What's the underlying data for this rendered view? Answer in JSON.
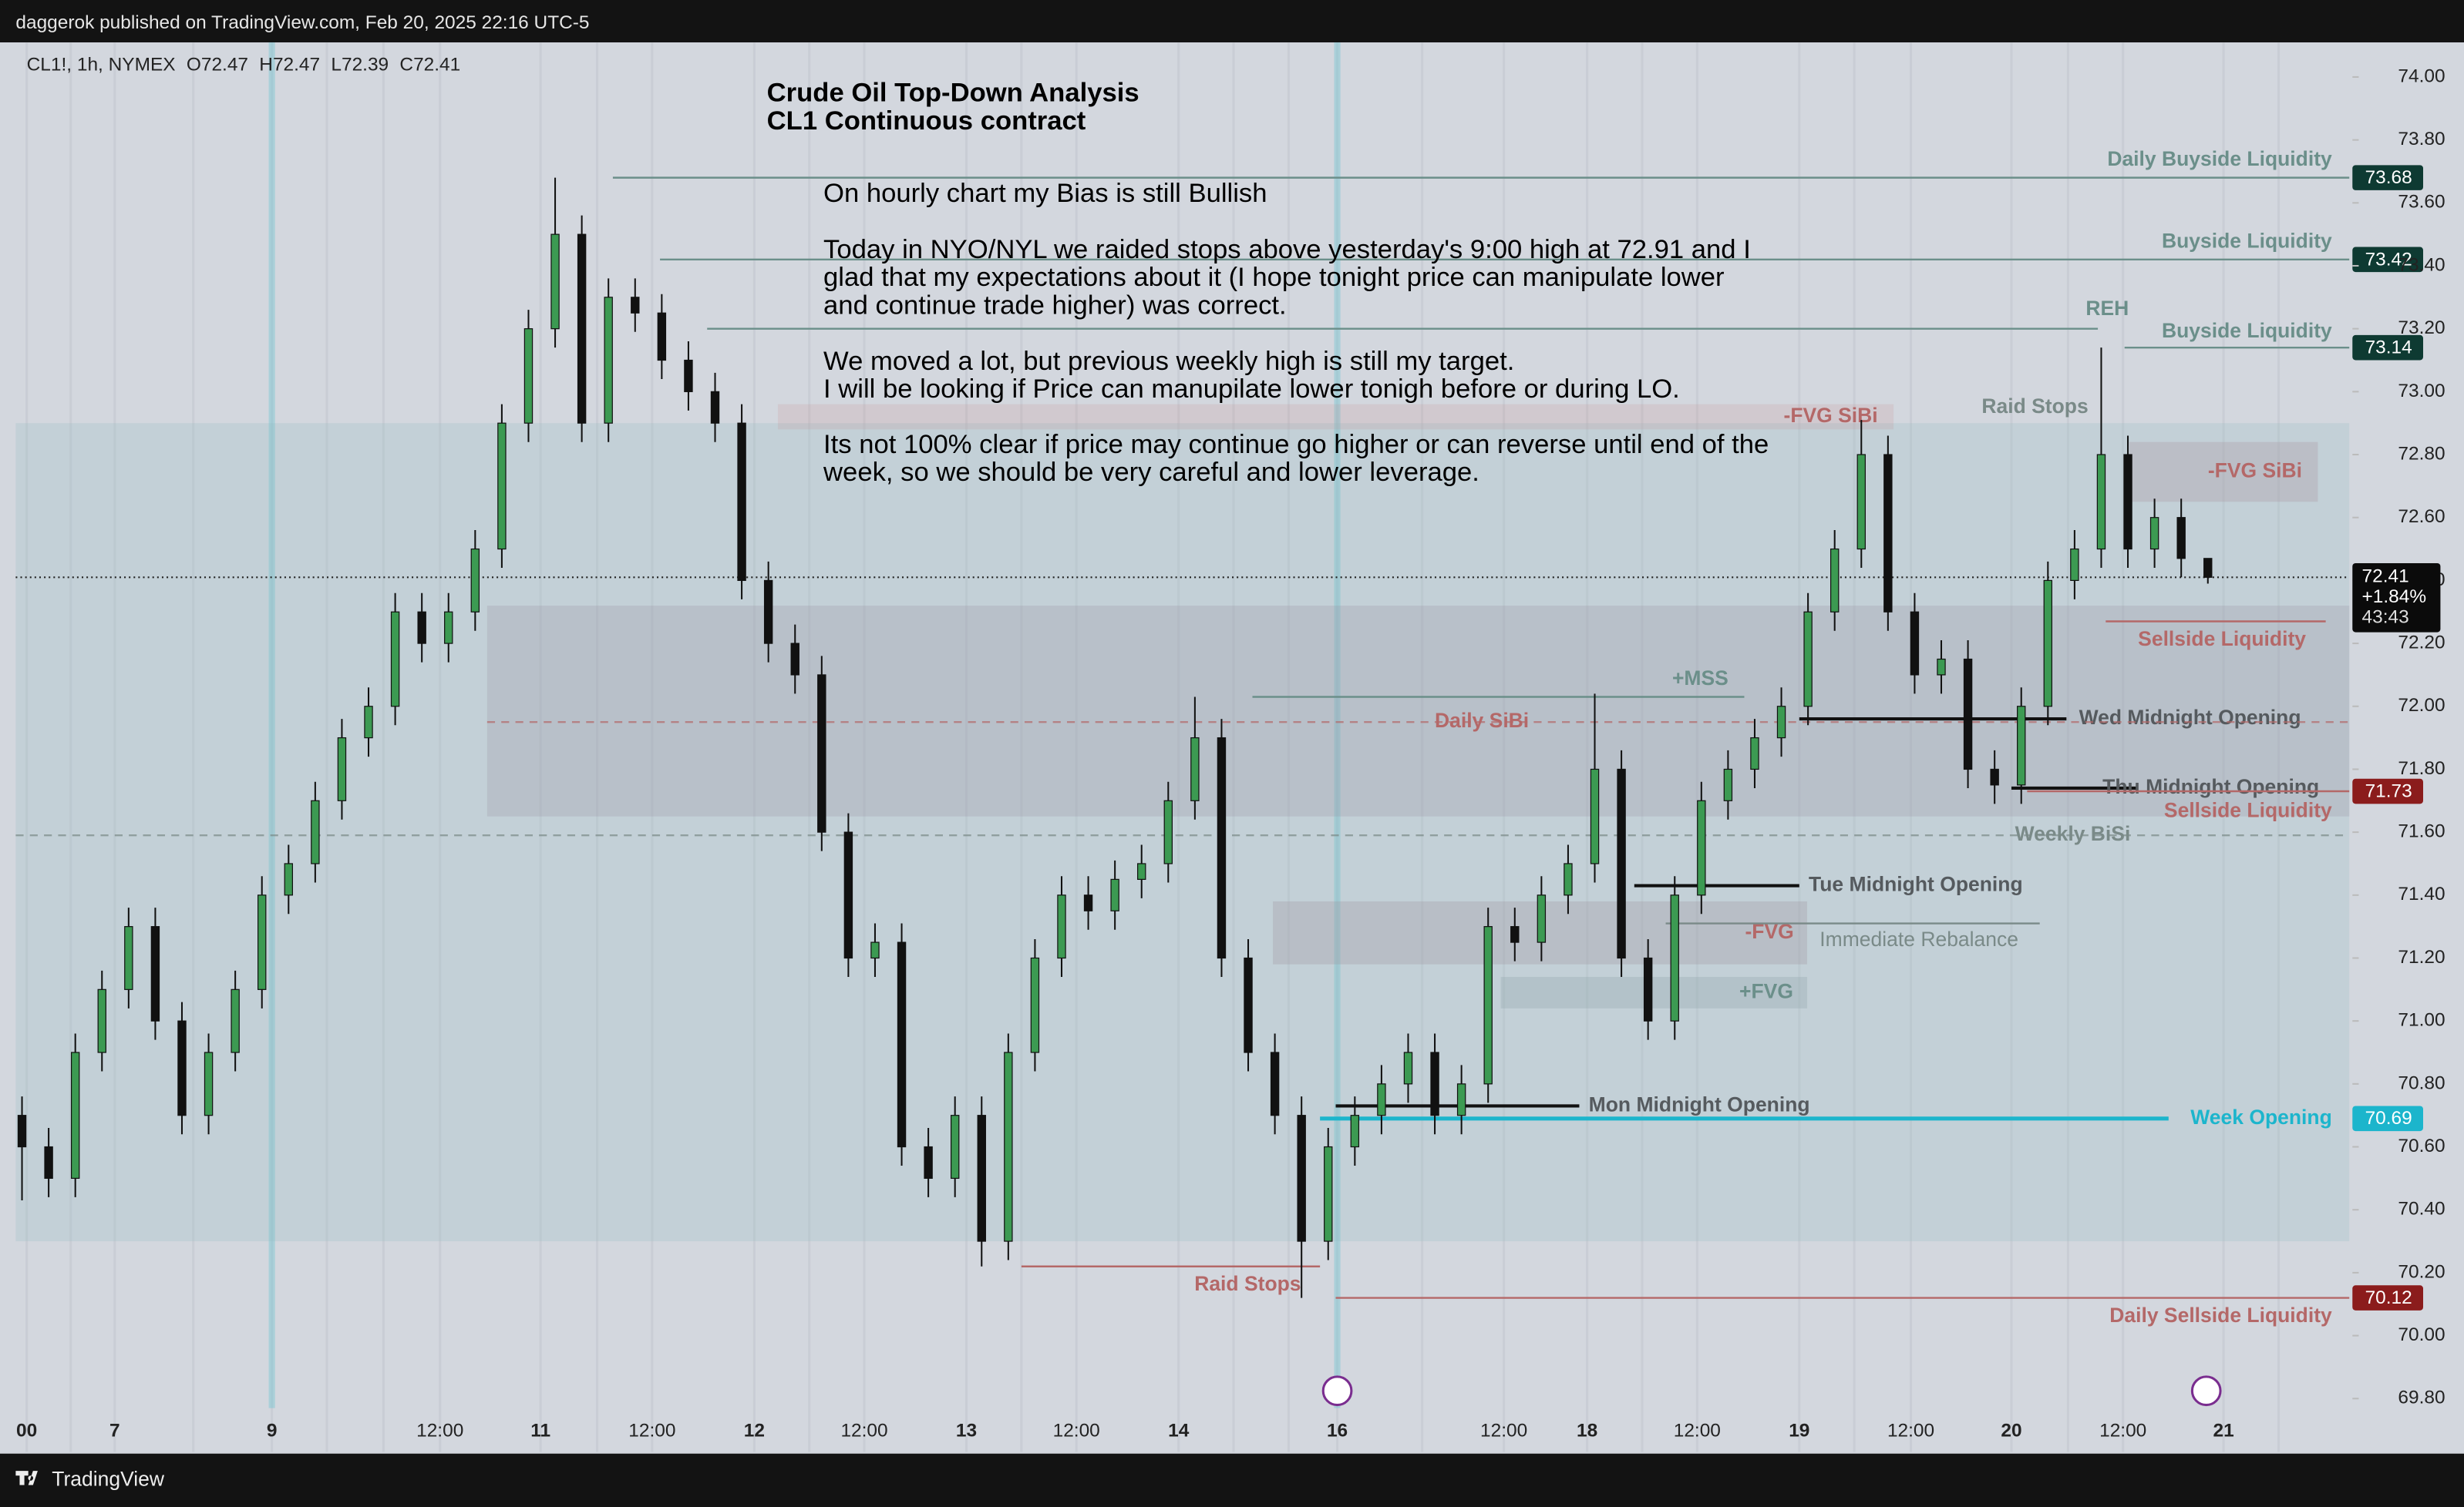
{
  "header": {
    "text": "daggerok published on TradingView.com, Feb 20, 2025 22:16 UTC-5"
  },
  "footer": {
    "brand": "TradingView"
  },
  "chart_data": {
    "type": "candlestick",
    "title": "Crude Oil Top-Down Analysis",
    "subtitle": "CL1 Continuous contract",
    "symbol": "CL1!, 1h, NYMEX",
    "ohlc": [
      {
        "key": "O",
        "value": 72.47
      },
      {
        "key": "H",
        "value": 72.47
      },
      {
        "key": "L",
        "value": 72.39
      },
      {
        "key": "C",
        "value": 72.41
      }
    ],
    "notes": [
      [
        "On hourly chart my Bias is still Bullish"
      ],
      [
        "Today in NYO/NYL we raided stops above yesterday's 9:00 high at 72.91 and I",
        "glad that my expectations about it (I hope tonight price can manipulate lower",
        "and continue trade higher) was correct."
      ],
      [
        "We moved a lot, but previous weekly high is still my target.",
        "I will be looking if Price can manupilate lower tonigh before or during LO."
      ],
      [
        "Its not 100% clear if price may continue go higher or can reverse until end of the",
        "week, so we should be very careful and lower leverage."
      ]
    ],
    "up_color": "#3c9a52",
    "down_color": "#111111",
    "candles": [
      [
        70.7,
        70.76,
        70.43,
        70.6
      ],
      [
        70.6,
        70.66,
        70.44,
        70.5
      ],
      [
        70.5,
        70.96,
        70.44,
        70.9
      ],
      [
        70.9,
        71.16,
        70.84,
        71.1
      ],
      [
        71.1,
        71.36,
        71.04,
        71.3
      ],
      [
        71.3,
        71.36,
        70.94,
        71.0
      ],
      [
        71.0,
        71.06,
        70.64,
        70.7
      ],
      [
        70.7,
        70.96,
        70.64,
        70.9
      ],
      [
        70.9,
        71.16,
        70.84,
        71.1
      ],
      [
        71.1,
        71.46,
        71.04,
        71.4
      ],
      [
        71.4,
        71.56,
        71.34,
        71.5
      ],
      [
        71.5,
        71.76,
        71.44,
        71.7
      ],
      [
        71.7,
        71.96,
        71.64,
        71.9
      ],
      [
        71.9,
        72.06,
        71.84,
        72.0
      ],
      [
        72.0,
        72.36,
        71.94,
        72.3
      ],
      [
        72.3,
        72.36,
        72.14,
        72.2
      ],
      [
        72.2,
        72.36,
        72.14,
        72.3
      ],
      [
        72.3,
        72.56,
        72.24,
        72.5
      ],
      [
        72.5,
        72.96,
        72.44,
        72.9
      ],
      [
        72.9,
        73.26,
        72.84,
        73.2
      ],
      [
        73.2,
        73.68,
        73.14,
        73.5
      ],
      [
        73.5,
        73.56,
        72.84,
        72.9
      ],
      [
        72.9,
        73.36,
        72.84,
        73.3
      ],
      [
        73.3,
        73.36,
        73.19,
        73.25
      ],
      [
        73.25,
        73.31,
        73.04,
        73.1
      ],
      [
        73.1,
        73.16,
        72.94,
        73.0
      ],
      [
        73.0,
        73.06,
        72.84,
        72.9
      ],
      [
        72.9,
        72.96,
        72.34,
        72.4
      ],
      [
        72.4,
        72.46,
        72.14,
        72.2
      ],
      [
        72.2,
        72.26,
        72.04,
        72.1
      ],
      [
        72.1,
        72.16,
        71.54,
        71.6
      ],
      [
        71.6,
        71.66,
        71.14,
        71.2
      ],
      [
        71.2,
        71.31,
        71.14,
        71.25
      ],
      [
        71.25,
        71.31,
        70.54,
        70.6
      ],
      [
        70.6,
        70.66,
        70.44,
        70.5
      ],
      [
        70.5,
        70.76,
        70.44,
        70.7
      ],
      [
        70.7,
        70.76,
        70.22,
        70.3
      ],
      [
        70.3,
        70.96,
        70.24,
        70.9
      ],
      [
        70.9,
        71.26,
        70.84,
        71.2
      ],
      [
        71.2,
        71.46,
        71.14,
        71.4
      ],
      [
        71.4,
        71.46,
        71.29,
        71.35
      ],
      [
        71.35,
        71.51,
        71.29,
        71.45
      ],
      [
        71.45,
        71.56,
        71.39,
        71.5
      ],
      [
        71.5,
        71.76,
        71.44,
        71.7
      ],
      [
        71.7,
        72.03,
        71.64,
        71.9
      ],
      [
        71.9,
        71.96,
        71.14,
        71.2
      ],
      [
        71.2,
        71.26,
        70.84,
        70.9
      ],
      [
        70.9,
        70.96,
        70.64,
        70.7
      ],
      [
        70.7,
        70.76,
        70.12,
        70.3
      ],
      [
        70.3,
        70.66,
        70.24,
        70.6
      ],
      [
        70.6,
        70.76,
        70.54,
        70.7
      ],
      [
        70.7,
        70.86,
        70.64,
        70.8
      ],
      [
        70.8,
        70.96,
        70.74,
        70.9
      ],
      [
        70.9,
        70.96,
        70.64,
        70.7
      ],
      [
        70.7,
        70.86,
        70.64,
        70.8
      ],
      [
        70.8,
        71.36,
        70.74,
        71.3
      ],
      [
        71.3,
        71.36,
        71.19,
        71.25
      ],
      [
        71.25,
        71.46,
        71.19,
        71.4
      ],
      [
        71.4,
        71.56,
        71.34,
        71.5
      ],
      [
        71.5,
        72.04,
        71.44,
        71.8
      ],
      [
        71.8,
        71.86,
        71.14,
        71.2
      ],
      [
        71.2,
        71.26,
        70.94,
        71.0
      ],
      [
        71.0,
        71.46,
        70.94,
        71.4
      ],
      [
        71.4,
        71.76,
        71.34,
        71.7
      ],
      [
        71.7,
        71.86,
        71.64,
        71.8
      ],
      [
        71.8,
        71.96,
        71.74,
        71.9
      ],
      [
        71.9,
        72.06,
        71.84,
        72.0
      ],
      [
        72.0,
        72.36,
        71.94,
        72.3
      ],
      [
        72.3,
        72.56,
        72.24,
        72.5
      ],
      [
        72.5,
        72.91,
        72.44,
        72.8
      ],
      [
        72.8,
        72.86,
        72.24,
        72.3
      ],
      [
        72.3,
        72.36,
        72.04,
        72.1
      ],
      [
        72.1,
        72.21,
        72.04,
        72.15
      ],
      [
        72.15,
        72.21,
        71.74,
        71.8
      ],
      [
        71.8,
        71.86,
        71.69,
        71.75
      ],
      [
        71.75,
        72.06,
        71.69,
        72.0
      ],
      [
        72.0,
        72.46,
        71.94,
        72.4
      ],
      [
        72.4,
        72.56,
        72.34,
        72.5
      ],
      [
        72.5,
        73.14,
        72.44,
        72.8
      ],
      [
        72.8,
        72.86,
        72.44,
        72.5
      ],
      [
        72.5,
        72.66,
        72.44,
        72.6
      ],
      [
        72.6,
        72.66,
        72.41,
        72.47
      ],
      [
        72.47,
        72.47,
        72.39,
        72.41
      ]
    ],
    "ylim": [
      69.63,
      74.11
    ],
    "yticks": [
      {
        "value": 69.8,
        "label": "69.80"
      },
      {
        "value": 70,
        "label": "70.00"
      },
      {
        "value": 70.2,
        "label": "70.20"
      },
      {
        "value": 70.4,
        "label": "70.40"
      },
      {
        "value": 70.6,
        "label": "70.60"
      },
      {
        "value": 70.8,
        "label": "70.80"
      },
      {
        "value": 71,
        "label": "71.00"
      },
      {
        "value": 71.2,
        "label": "71.20"
      },
      {
        "value": 71.4,
        "label": "71.40"
      },
      {
        "value": 71.6,
        "label": "71.60"
      },
      {
        "value": 71.8,
        "label": "71.80"
      },
      {
        "value": 72,
        "label": "72.00"
      },
      {
        "value": 72.2,
        "label": "72.20"
      },
      {
        "value": 72.4,
        "label": "72.40"
      },
      {
        "value": 72.6,
        "label": "72.60"
      },
      {
        "value": 72.8,
        "label": "72.80"
      },
      {
        "value": 73,
        "label": "73.00"
      },
      {
        "value": 73.2,
        "label": "73.20"
      },
      {
        "value": 73.4,
        "label": "73.40"
      },
      {
        "value": 73.6,
        "label": "73.60"
      },
      {
        "value": 73.8,
        "label": "73.80"
      },
      {
        "value": 74,
        "label": "74.00"
      }
    ],
    "xtick_labels": [
      "00",
      "7",
      "9",
      "12:00",
      "11",
      "12:00",
      "12",
      "12:00",
      "13",
      "12:00",
      "14",
      "16",
      "12:00",
      "18",
      "12:00",
      "19",
      "12:00",
      "20",
      "12:00",
      "21"
    ],
    "last": {
      "value": 72.41,
      "change": "+1.84%",
      "countdown": "43:43"
    },
    "zones": [
      {
        "range": [
          70.3,
          72.9
        ],
        "color": "rgba(140,185,190,0.22)"
      },
      {
        "range": [
          71.65,
          72.32
        ],
        "color": "rgba(150,145,160,0.25)"
      },
      {
        "label": "-FVG SiBi",
        "range": [
          72.88,
          72.96
        ],
        "color": "rgba(200,140,140,0.18)"
      },
      {
        "label": "-FVG SiBi",
        "range": [
          72.65,
          72.84
        ],
        "color": "rgba(170,150,160,0.3)"
      },
      {
        "label": "-FVG",
        "range": [
          71.18,
          71.38
        ],
        "color": "rgba(160,150,160,0.3)"
      },
      {
        "label": "+FVG",
        "range": [
          71.04,
          71.14
        ],
        "color": "rgba(150,170,175,0.35)"
      }
    ],
    "levels": [
      {
        "label": "Daily Buyside Liquidity",
        "value": 73.68,
        "color": "#6b8f8a",
        "badge": "#0e3a32"
      },
      {
        "label": "Buyside Liquidity",
        "value": 73.42,
        "color": "#6b8f8a",
        "badge": "#0e3a32"
      },
      {
        "label": "REH",
        "value": 73.2,
        "color": "#6b8f8a"
      },
      {
        "label": "Buyside Liquidity",
        "value": 73.14,
        "color": "#6b8f8a",
        "badge": "#0e3a32"
      },
      {
        "label": "Sellside Liquidity",
        "value": 72.27,
        "color": "#b46868"
      },
      {
        "label": "+MSS",
        "value": 72.03,
        "color": "#6b8f8a"
      },
      {
        "label": "Wed Midnight Opening",
        "value": 71.96,
        "color": "#111111"
      },
      {
        "label": "Thu Midnight Opening",
        "value": 71.74,
        "color": "#111111"
      },
      {
        "label": "Sellside Liquidity",
        "value": 71.73,
        "color": "#b46868",
        "badge": "#8b1c1c"
      },
      {
        "label": "Tue Midnight Opening",
        "value": 71.43,
        "color": "#111111"
      },
      {
        "label": "Immediate Rebalance",
        "value": 71.31,
        "color": "#7a8a88"
      },
      {
        "label": "Mon Midnight Opening",
        "value": 70.73,
        "color": "#111111"
      },
      {
        "label": "Week Opening",
        "value": 70.69,
        "color": "#1cb5cc",
        "badge": "#1cb5cc"
      },
      {
        "label": "Raid Stops",
        "value": 70.22,
        "color": "#b46868"
      },
      {
        "label": "Daily Sellside Liquidity",
        "value": 70.12,
        "color": "#b46868",
        "badge": "#8b1c1c"
      },
      {
        "label": "Raid Stops",
        "value": 72.95,
        "color": "#7a8a88"
      },
      {
        "label": "Daily SiBi",
        "value": 71.95,
        "color": "#b46868",
        "dashed": true
      },
      {
        "label": "Weekly BiSi",
        "value": 71.59,
        "color": "#7a8a88",
        "dashed": true
      }
    ]
  }
}
